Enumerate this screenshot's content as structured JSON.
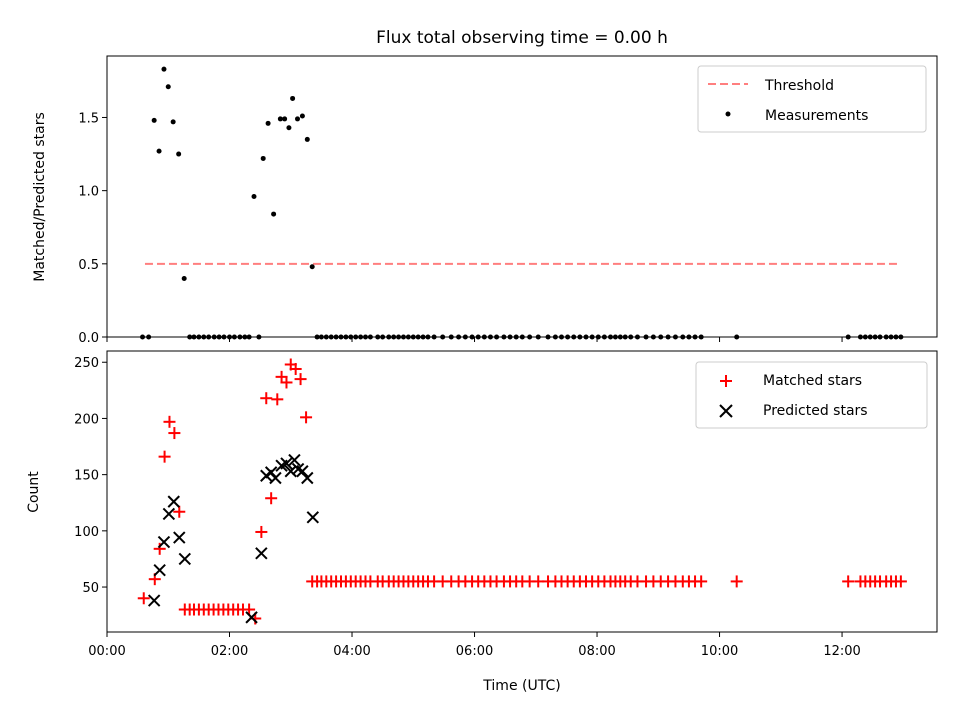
{
  "chart_data": [
    {
      "type": "scatter",
      "title": "Flux total observing time = 0.00 h",
      "xlabel": "",
      "ylabel": "Matched/Predicted stars",
      "xlim": [
        0.0,
        13.55
      ],
      "ylim": [
        0.0,
        1.92
      ],
      "yticks": [
        0.0,
        0.5,
        1.0,
        1.5
      ],
      "ytick_labels": [
        "0.0",
        "0.5",
        "1.0",
        "1.5"
      ],
      "legend_position": "top-right",
      "threshold": {
        "name": "Threshold",
        "value": 0.5,
        "x": [
          0.62,
          12.95
        ],
        "color": "#ff7f7f",
        "style": "dashed"
      },
      "series": [
        {
          "name": "Measurements",
          "color": "#000000",
          "marker": "dot",
          "x": [
            0.58,
            0.68,
            0.77,
            0.85,
            0.93,
            1.0,
            1.08,
            1.17,
            1.26,
            1.35,
            1.42,
            1.5,
            1.58,
            1.66,
            1.75,
            1.83,
            1.91,
            2.0,
            2.08,
            2.17,
            2.25,
            2.32,
            2.4,
            2.48,
            2.55,
            2.63,
            2.72,
            2.83,
            2.9,
            2.97,
            3.03,
            3.11,
            3.19,
            3.27,
            3.35,
            3.43,
            3.5,
            3.58,
            3.66,
            3.74,
            3.82,
            3.9,
            3.98,
            4.06,
            4.14,
            4.22,
            4.3,
            4.42,
            4.5,
            4.6,
            4.68,
            4.76,
            4.84,
            4.92,
            5.0,
            5.08,
            5.16,
            5.24,
            5.34,
            5.48,
            5.62,
            5.74,
            5.85,
            5.96,
            6.06,
            6.16,
            6.26,
            6.36,
            6.48,
            6.58,
            6.68,
            6.78,
            6.9,
            7.04,
            7.2,
            7.32,
            7.42,
            7.52,
            7.62,
            7.72,
            7.82,
            7.92,
            8.02,
            8.12,
            8.22,
            8.3,
            8.38,
            8.46,
            8.55,
            8.66,
            8.8,
            8.92,
            9.04,
            9.16,
            9.28,
            9.4,
            9.5,
            9.6,
            9.7,
            10.28,
            12.1,
            12.3,
            12.38,
            12.46,
            12.54,
            12.62,
            12.72,
            12.8,
            12.88,
            12.96
          ],
          "y": [
            0.0,
            0.0,
            1.48,
            1.27,
            1.83,
            1.71,
            1.47,
            1.25,
            0.4,
            0.0,
            0.0,
            0.0,
            0.0,
            0.0,
            0.0,
            0.0,
            0.0,
            0.0,
            0.0,
            0.0,
            0.0,
            0.0,
            0.96,
            0.0,
            1.22,
            1.46,
            0.84,
            1.49,
            1.49,
            1.43,
            1.63,
            1.49,
            1.51,
            1.35,
            0.48,
            0.0,
            0.0,
            0.0,
            0.0,
            0.0,
            0.0,
            0.0,
            0.0,
            0.0,
            0.0,
            0.0,
            0.0,
            0.0,
            0.0,
            0.0,
            0.0,
            0.0,
            0.0,
            0.0,
            0.0,
            0.0,
            0.0,
            0.0,
            0.0,
            0.0,
            0.0,
            0.0,
            0.0,
            0.0,
            0.0,
            0.0,
            0.0,
            0.0,
            0.0,
            0.0,
            0.0,
            0.0,
            0.0,
            0.0,
            0.0,
            0.0,
            0.0,
            0.0,
            0.0,
            0.0,
            0.0,
            0.0,
            0.0,
            0.0,
            0.0,
            0.0,
            0.0,
            0.0,
            0.0,
            0.0,
            0.0,
            0.0,
            0.0,
            0.0,
            0.0,
            0.0,
            0.0,
            0.0,
            0.0,
            0.0,
            0.0,
            0.0,
            0.0,
            0.0,
            0.0,
            0.0,
            0.0,
            0.0,
            0.0,
            0.0
          ]
        }
      ]
    },
    {
      "type": "scatter",
      "title": "",
      "xlabel": "Time (UTC)",
      "ylabel": "Count",
      "xlim": [
        0.0,
        13.55
      ],
      "ylim": [
        10,
        260
      ],
      "yticks": [
        50,
        100,
        150,
        200,
        250
      ],
      "ytick_labels": [
        "50",
        "100",
        "150",
        "200",
        "250"
      ],
      "xticks": [
        0,
        2,
        4,
        6,
        8,
        10,
        12
      ],
      "xtick_labels": [
        "00:00",
        "02:00",
        "04:00",
        "06:00",
        "08:00",
        "10:00",
        "12:00"
      ],
      "legend_position": "top-right",
      "series": [
        {
          "name": "Matched stars",
          "color": "#ff0000",
          "marker": "plus",
          "x": [
            0.6,
            0.78,
            0.86,
            0.94,
            1.02,
            1.1,
            1.18,
            1.27,
            1.35,
            1.42,
            1.5,
            1.58,
            1.66,
            1.74,
            1.82,
            1.9,
            1.98,
            2.06,
            2.14,
            2.22,
            2.32,
            2.42,
            2.52,
            2.6,
            2.68,
            2.78,
            2.85,
            2.93,
            3.0,
            3.08,
            3.16,
            3.25,
            3.35,
            3.43,
            3.5,
            3.58,
            3.66,
            3.74,
            3.82,
            3.9,
            3.98,
            4.06,
            4.14,
            4.22,
            4.3,
            4.42,
            4.5,
            4.6,
            4.68,
            4.76,
            4.84,
            4.92,
            5.0,
            5.08,
            5.16,
            5.24,
            5.34,
            5.48,
            5.62,
            5.74,
            5.85,
            5.96,
            6.06,
            6.16,
            6.26,
            6.36,
            6.48,
            6.58,
            6.68,
            6.78,
            6.9,
            7.04,
            7.2,
            7.32,
            7.42,
            7.52,
            7.62,
            7.72,
            7.82,
            7.92,
            8.02,
            8.12,
            8.22,
            8.3,
            8.38,
            8.46,
            8.55,
            8.66,
            8.8,
            8.92,
            9.04,
            9.16,
            9.28,
            9.4,
            9.5,
            9.6,
            9.7,
            10.28,
            12.1,
            12.3,
            12.38,
            12.46,
            12.54,
            12.62,
            12.72,
            12.8,
            12.88,
            12.96
          ],
          "y": [
            40,
            57,
            84,
            166,
            197,
            187,
            117,
            30,
            30,
            30,
            30,
            30,
            30,
            30,
            30,
            30,
            30,
            30,
            30,
            30,
            30,
            22,
            99,
            218,
            129,
            217,
            237,
            232,
            248,
            244,
            235,
            201,
            55,
            55,
            55,
            55,
            55,
            55,
            55,
            55,
            55,
            55,
            55,
            55,
            55,
            55,
            55,
            55,
            55,
            55,
            55,
            55,
            55,
            55,
            55,
            55,
            55,
            55,
            55,
            55,
            55,
            55,
            55,
            55,
            55,
            55,
            55,
            55,
            55,
            55,
            55,
            55,
            55,
            55,
            55,
            55,
            55,
            55,
            55,
            55,
            55,
            55,
            55,
            55,
            55,
            55,
            55,
            55,
            55,
            55,
            55,
            55,
            55,
            55,
            55,
            55,
            55,
            55,
            55,
            55,
            55,
            55,
            55,
            55,
            55,
            55,
            55,
            55
          ]
        },
        {
          "name": "Predicted stars",
          "color": "#000000",
          "marker": "x",
          "x": [
            0.77,
            0.86,
            0.93,
            1.01,
            1.09,
            1.18,
            1.27,
            2.36,
            2.52,
            2.6,
            2.68,
            2.75,
            2.85,
            2.93,
            3.0,
            3.06,
            3.12,
            3.19,
            3.27,
            3.36
          ],
          "y": [
            38,
            65,
            90,
            115,
            126,
            94,
            75,
            23,
            80,
            149,
            152,
            147,
            158,
            160,
            153,
            163,
            155,
            153,
            147,
            112
          ]
        }
      ]
    }
  ]
}
